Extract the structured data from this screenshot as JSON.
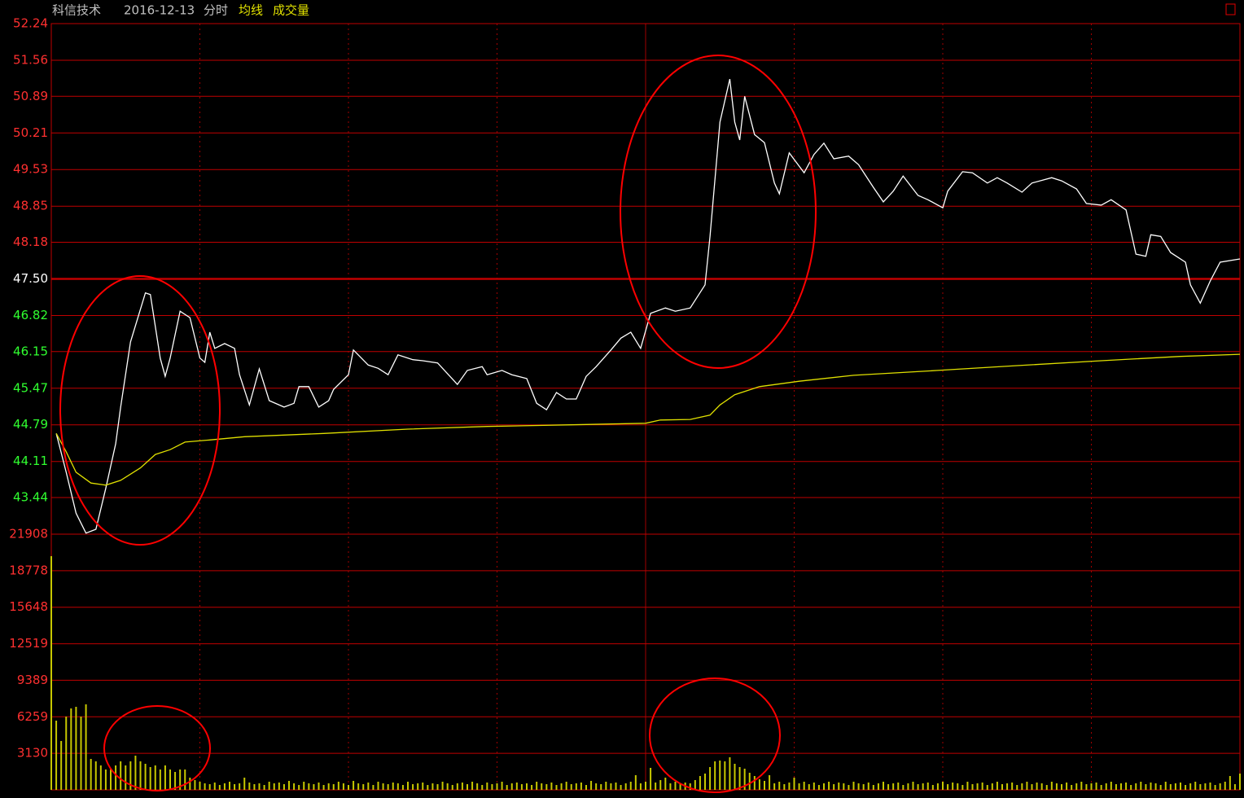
{
  "header": {
    "stock": "科信技术",
    "date": "2016-12-13",
    "mode": "分时"
  },
  "chart_data": [
    {
      "type": "line",
      "xlim": [
        0,
        240
      ],
      "ylim": [
        42.76,
        52.24
      ],
      "yticks": [
        {
          "value": 52.24,
          "label": "52.24"
        },
        {
          "value": 51.56,
          "label": "51.56"
        },
        {
          "value": 50.89,
          "label": "50.89"
        },
        {
          "value": 50.21,
          "label": "50.21"
        },
        {
          "value": 49.53,
          "label": "49.53"
        },
        {
          "value": 48.85,
          "label": "48.85"
        },
        {
          "value": 48.18,
          "label": "48.18"
        },
        {
          "value": 47.5,
          "label": "47.50"
        },
        {
          "value": 46.82,
          "label": "46.82"
        },
        {
          "value": 46.15,
          "label": "46.15"
        },
        {
          "value": 45.47,
          "label": "45.47"
        },
        {
          "value": 44.79,
          "label": "44.79"
        },
        {
          "value": 44.11,
          "label": "44.11"
        },
        {
          "value": 43.44,
          "label": "43.44"
        }
      ],
      "grid": true,
      "series": [
        {
          "color": "#ffffff",
          "x": [
            1,
            3,
            5,
            7,
            9,
            11,
            13,
            14,
            16,
            19,
            20,
            22,
            23,
            24,
            26,
            28,
            30,
            31,
            32,
            33,
            35,
            37,
            38,
            40,
            42,
            44,
            47,
            49,
            50,
            52,
            54,
            56,
            57,
            60,
            61,
            64,
            66,
            68,
            70,
            73,
            75,
            78,
            82,
            84,
            87,
            88,
            91,
            93,
            96,
            98,
            100,
            102,
            104,
            106,
            108,
            110,
            113,
            115,
            117,
            119,
            121,
            124,
            126,
            129,
            132,
            133,
            135,
            137,
            138,
            139,
            140,
            142,
            144,
            146,
            147,
            149,
            152,
            154,
            156,
            158,
            161,
            163,
            166,
            168,
            170,
            172,
            175,
            177,
            180,
            181,
            184,
            186,
            189,
            191,
            193,
            196,
            198,
            202,
            204,
            207,
            209,
            212,
            214,
            217,
            219,
            221,
            222,
            224,
            226,
            229,
            230,
            232,
            234,
            236,
            240
          ],
          "values": [
            44.63,
            43.91,
            43.15,
            42.78,
            42.85,
            43.61,
            44.44,
            45.12,
            46.33,
            47.24,
            47.21,
            46.03,
            45.69,
            46.03,
            46.9,
            46.78,
            46.03,
            45.95,
            46.51,
            46.21,
            46.3,
            46.21,
            45.72,
            45.16,
            45.83,
            45.24,
            45.12,
            45.19,
            45.5,
            45.5,
            45.12,
            45.24,
            45.45,
            45.72,
            46.18,
            45.9,
            45.84,
            45.72,
            46.09,
            46.0,
            45.98,
            45.94,
            45.54,
            45.8,
            45.87,
            45.72,
            45.8,
            45.72,
            45.65,
            45.19,
            45.07,
            45.39,
            45.27,
            45.27,
            45.69,
            45.87,
            46.18,
            46.4,
            46.51,
            46.21,
            46.86,
            46.96,
            46.9,
            46.96,
            47.39,
            48.29,
            50.41,
            51.21,
            50.41,
            50.08,
            50.89,
            50.18,
            50.03,
            49.28,
            49.08,
            49.84,
            49.47,
            49.81,
            50.02,
            49.73,
            49.78,
            49.62,
            49.2,
            48.93,
            49.13,
            49.41,
            49.05,
            48.97,
            48.82,
            49.13,
            49.49,
            49.47,
            49.28,
            49.38,
            49.28,
            49.11,
            49.28,
            49.38,
            49.32,
            49.17,
            48.9,
            48.87,
            48.97,
            48.78,
            47.96,
            47.92,
            48.32,
            48.29,
            47.99,
            47.81,
            47.39,
            47.05,
            47.46,
            47.81,
            47.87
          ]
        },
        {
          "name": "均线",
          "color": "#e0e000",
          "x": [
            1,
            3,
            5,
            8,
            11,
            14,
            18,
            21,
            24,
            27,
            32,
            39,
            55,
            72,
            88,
            105,
            120,
            123,
            129,
            133,
            135,
            138,
            143,
            151,
            162,
            179,
            195,
            212,
            228,
            240
          ],
          "values": [
            44.63,
            44.29,
            43.91,
            43.71,
            43.67,
            43.76,
            43.99,
            44.24,
            44.33,
            44.47,
            44.51,
            44.57,
            44.63,
            44.71,
            44.76,
            44.79,
            44.82,
            44.88,
            44.89,
            44.97,
            45.16,
            45.35,
            45.5,
            45.6,
            45.71,
            45.8,
            45.89,
            45.98,
            46.06,
            46.1
          ]
        }
      ]
    },
    {
      "type": "bar",
      "title": "成交量",
      "color": "#c8c800",
      "xlim": [
        0,
        240
      ],
      "ylim": [
        0,
        21908
      ],
      "yticks": [
        21908,
        18778,
        15648,
        12519,
        9389,
        6259,
        3130
      ],
      "grid": true,
      "values": [
        20024,
        5930,
        4186,
        6280,
        6977,
        7116,
        6280,
        7326,
        2651,
        2442,
        2093,
        1744,
        1744,
        2093,
        2442,
        2093,
        2442,
        2930,
        2442,
        2233,
        1954,
        2093,
        1744,
        2093,
        1744,
        1535,
        1744,
        1744,
        1047,
        837,
        698,
        558,
        488,
        628,
        419,
        558,
        698,
        488,
        558,
        1047,
        628,
        488,
        558,
        419,
        698,
        558,
        628,
        488,
        767,
        558,
        419,
        698,
        558,
        488,
        628,
        419,
        558,
        488,
        698,
        558,
        419,
        767,
        558,
        488,
        628,
        419,
        698,
        558,
        488,
        628,
        558,
        419,
        698,
        488,
        558,
        628,
        419,
        558,
        488,
        698,
        558,
        419,
        558,
        628,
        488,
        698,
        558,
        419,
        628,
        488,
        558,
        698,
        419,
        558,
        628,
        488,
        558,
        419,
        698,
        558,
        488,
        628,
        419,
        558,
        698,
        488,
        558,
        628,
        419,
        767,
        558,
        488,
        698,
        558,
        628,
        419,
        558,
        698,
        1256,
        558,
        698,
        1884,
        628,
        837,
        1047,
        558,
        698,
        488,
        628,
        558,
        837,
        1186,
        1395,
        1954,
        2442,
        2512,
        2442,
        2791,
        2233,
        1954,
        1814,
        1465,
        1186,
        907,
        767,
        1256,
        558,
        698,
        488,
        628,
        1047,
        558,
        698,
        488,
        628,
        419,
        558,
        698,
        488,
        628,
        558,
        419,
        698,
        558,
        488,
        628,
        419,
        558,
        698,
        488,
        558,
        628,
        419,
        558,
        698,
        488,
        558,
        628,
        419,
        558,
        698,
        488,
        628,
        558,
        419,
        698,
        488,
        558,
        628,
        419,
        558,
        698,
        488,
        558,
        628,
        419,
        558,
        698,
        488,
        628,
        558,
        419,
        698,
        558,
        488,
        628,
        419,
        558,
        698,
        488,
        558,
        628,
        419,
        558,
        698,
        488,
        558,
        628,
        419,
        558,
        698,
        488,
        628,
        558,
        419,
        698,
        488,
        558,
        628,
        419,
        558,
        698,
        488,
        558,
        628,
        419,
        558,
        698,
        1186,
        488,
        1395
      ]
    }
  ]
}
